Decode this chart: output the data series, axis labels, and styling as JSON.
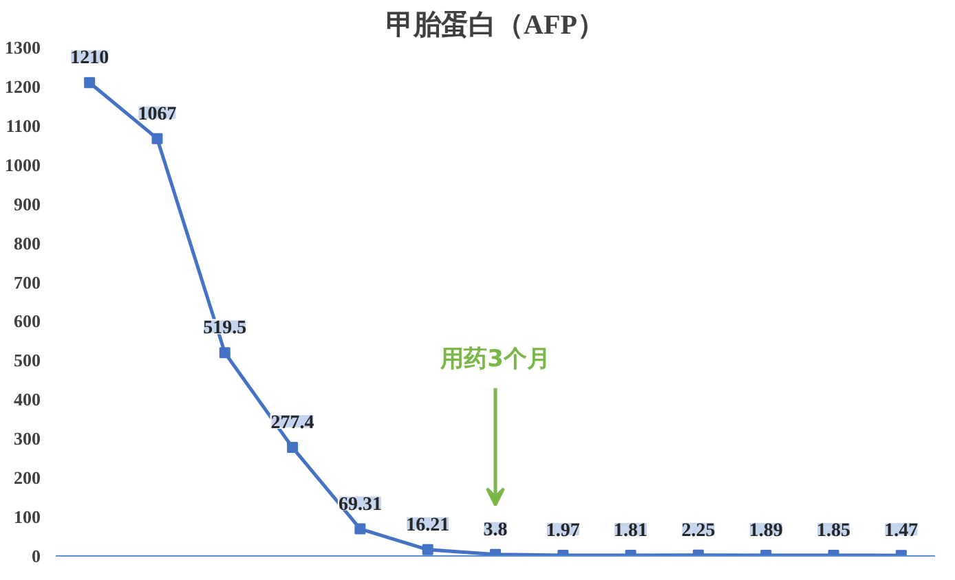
{
  "chart_data": {
    "type": "line",
    "title": "甲胎蛋白（AFP）",
    "categories": [
      null,
      null,
      null,
      null,
      null,
      null,
      null,
      null,
      null,
      null,
      null,
      null,
      null
    ],
    "series": [
      {
        "color": "#4472c4",
        "values": [
          1210,
          1067,
          519.5,
          277.4,
          69.31,
          16.21,
          3.8,
          1.97,
          1.81,
          2.25,
          1.89,
          1.85,
          1.47
        ]
      }
    ],
    "ylim": [
      0,
      1300
    ],
    "yticks": [
      0,
      100,
      200,
      300,
      400,
      500,
      600,
      700,
      800,
      900,
      1000,
      1100,
      1200,
      1300
    ],
    "grid": false,
    "marker": "square",
    "line_style": "solid",
    "data_labels": true,
    "annotations": [
      "用药3个月"
    ]
  }
}
